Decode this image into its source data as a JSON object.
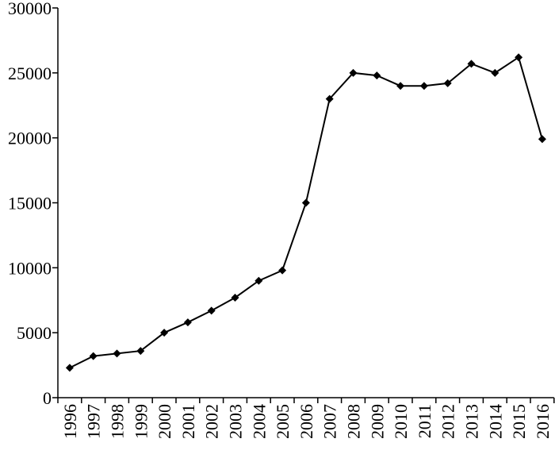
{
  "chart_data": {
    "type": "line",
    "categories": [
      "1996",
      "1997",
      "1998",
      "1999",
      "2000",
      "2001",
      "2002",
      "2003",
      "2004",
      "2005",
      "2006",
      "2007",
      "2008",
      "2009",
      "2010",
      "2011",
      "2012",
      "2013",
      "2014",
      "2015",
      "2016"
    ],
    "values": [
      2300,
      3200,
      3400,
      3600,
      5000,
      5800,
      6700,
      7700,
      9000,
      9800,
      15000,
      23000,
      25000,
      24800,
      24000,
      24000,
      24200,
      25700,
      25000,
      26200,
      19900
    ],
    "color": "#000000",
    "ylim": [
      0,
      30000
    ],
    "yticks": [
      0,
      5000,
      10000,
      15000,
      20000,
      25000,
      30000
    ]
  }
}
